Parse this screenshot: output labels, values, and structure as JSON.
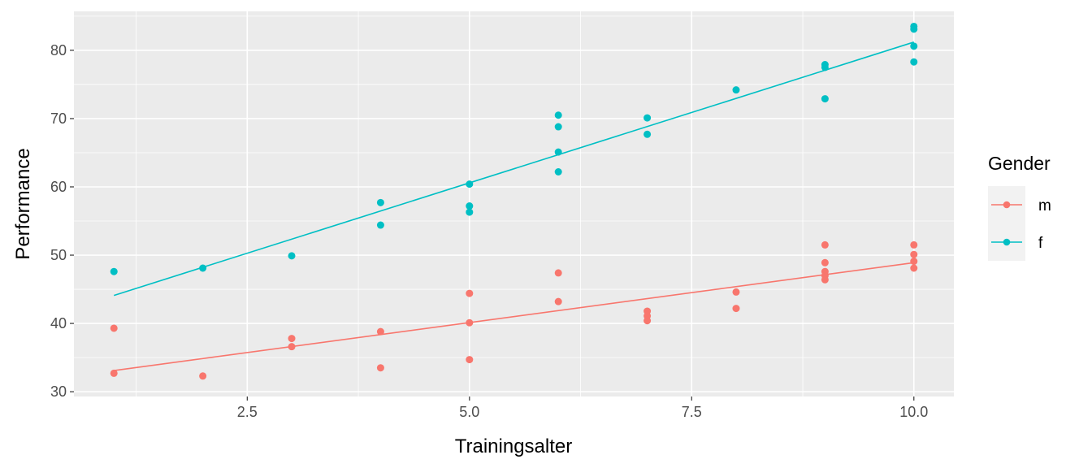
{
  "chart_data": {
    "type": "scatter",
    "xlabel": "Trainingsalter",
    "ylabel": "Performance",
    "xlim": [
      0.55,
      10.45
    ],
    "ylim": [
      29.3,
      85.7
    ],
    "x_ticks": [
      2.5,
      5.0,
      7.5,
      10.0
    ],
    "x_tick_labels": [
      "2.5",
      "5.0",
      "7.5",
      "10.0"
    ],
    "x_minor_ticks": [
      1.25,
      3.75,
      6.25,
      8.75
    ],
    "y_ticks": [
      30,
      40,
      50,
      60,
      70,
      80
    ],
    "y_tick_labels": [
      "30",
      "40",
      "50",
      "60",
      "70",
      "80"
    ],
    "y_minor_ticks": [
      35,
      45,
      55,
      65,
      75,
      85
    ],
    "grid": true,
    "legend": {
      "title": "Gender",
      "position": "right",
      "entries": [
        "m",
        "f"
      ]
    },
    "series": [
      {
        "name": "m",
        "color": "#F8766D",
        "points": [
          [
            1,
            39.3
          ],
          [
            1,
            32.7
          ],
          [
            2,
            32.3
          ],
          [
            3,
            37.8
          ],
          [
            3,
            36.6
          ],
          [
            4,
            38.8
          ],
          [
            4,
            33.5
          ],
          [
            5,
            44.4
          ],
          [
            5,
            40.1
          ],
          [
            5,
            34.7
          ],
          [
            6,
            47.4
          ],
          [
            6,
            43.2
          ],
          [
            7,
            41.8
          ],
          [
            7,
            41.1
          ],
          [
            7,
            40.4
          ],
          [
            8,
            44.6
          ],
          [
            8,
            42.2
          ],
          [
            9,
            51.5
          ],
          [
            9,
            48.9
          ],
          [
            9,
            47.6
          ],
          [
            9,
            47.0
          ],
          [
            9,
            46.4
          ],
          [
            10,
            51.5
          ],
          [
            10,
            50.1
          ],
          [
            10,
            49.1
          ],
          [
            10,
            48.1
          ]
        ],
        "fit_line": {
          "x": [
            1,
            10
          ],
          "y": [
            33.1,
            48.9
          ]
        }
      },
      {
        "name": "f",
        "color": "#00BFC4",
        "points": [
          [
            1,
            47.6
          ],
          [
            2,
            48.1
          ],
          [
            3,
            49.9
          ],
          [
            4,
            57.7
          ],
          [
            4,
            54.4
          ],
          [
            5,
            60.4
          ],
          [
            5,
            57.2
          ],
          [
            5,
            56.3
          ],
          [
            6,
            70.5
          ],
          [
            6,
            68.8
          ],
          [
            6,
            65.1
          ],
          [
            6,
            62.2
          ],
          [
            7,
            70.1
          ],
          [
            7,
            67.7
          ],
          [
            8,
            74.2
          ],
          [
            9,
            77.9
          ],
          [
            9,
            77.5
          ],
          [
            9,
            72.9
          ],
          [
            10,
            83.5
          ],
          [
            10,
            83.1
          ],
          [
            10,
            80.6
          ],
          [
            10,
            78.3
          ]
        ],
        "fit_line": {
          "x": [
            1,
            10
          ],
          "y": [
            44.1,
            81.2
          ]
        }
      }
    ]
  }
}
